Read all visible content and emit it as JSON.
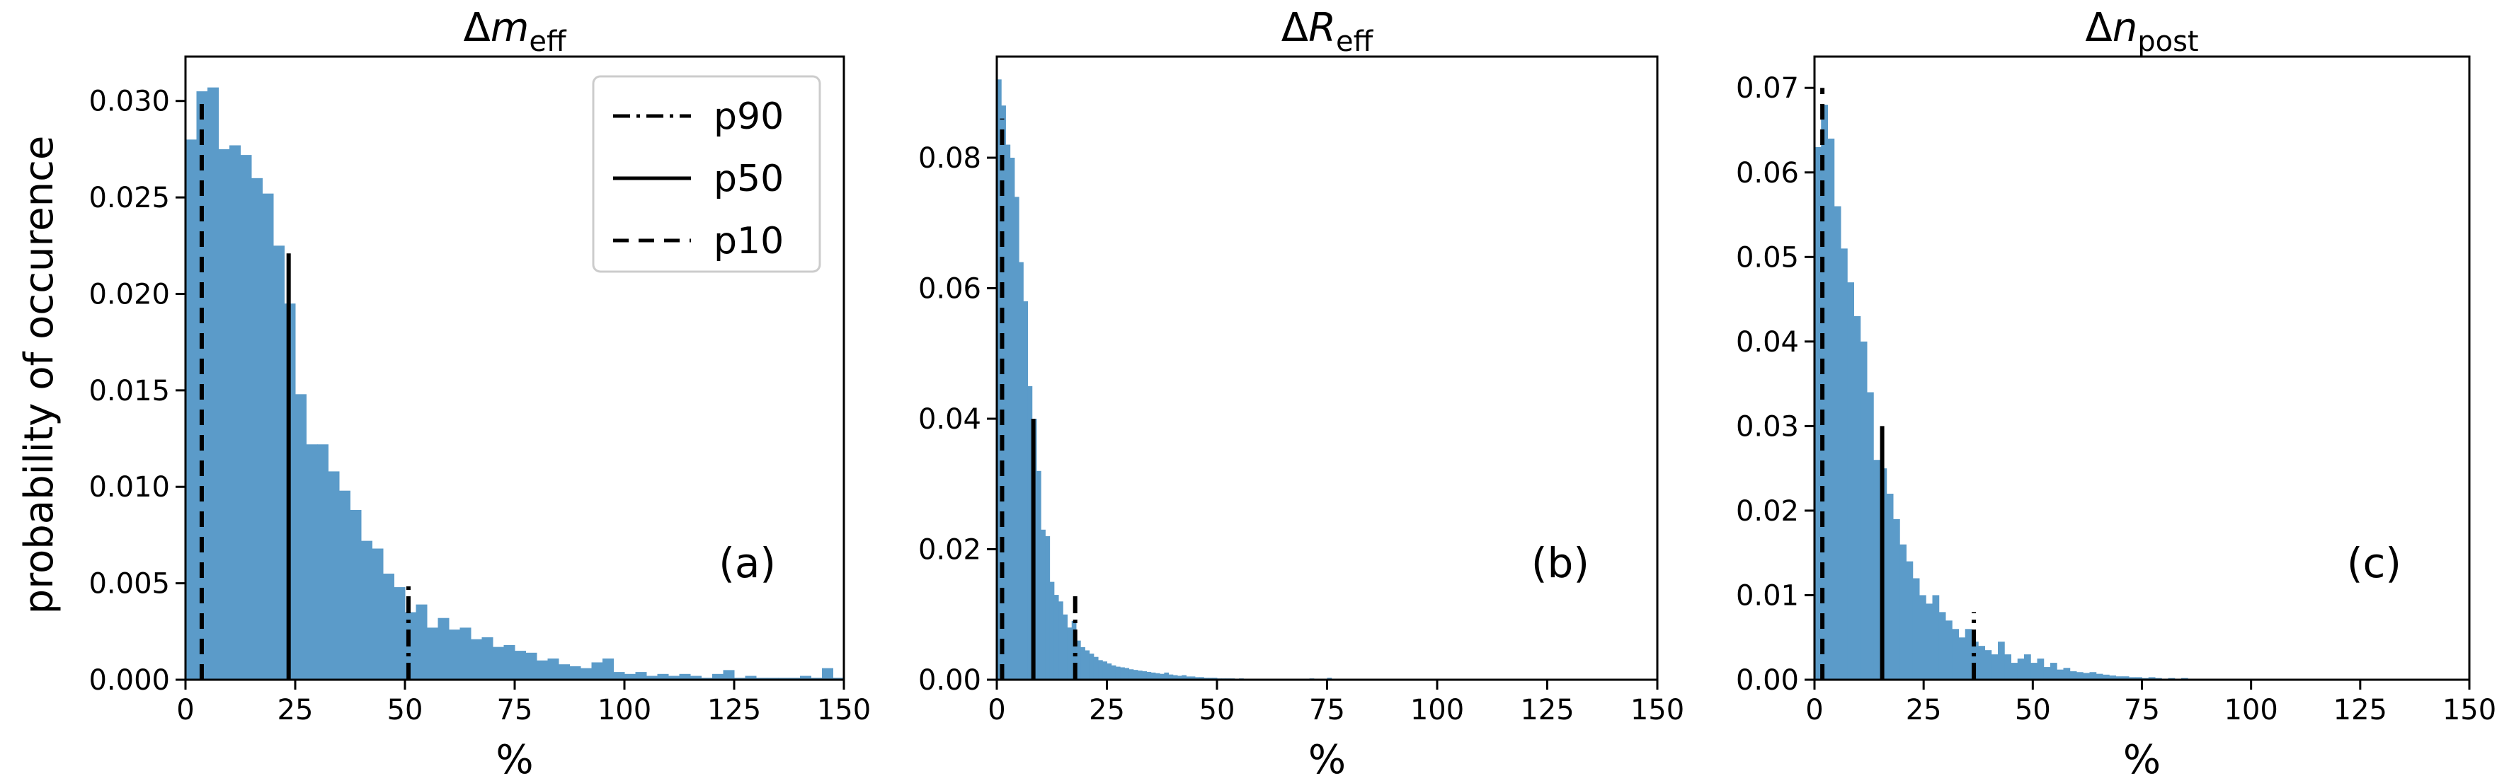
{
  "figure": {
    "ylabel": "probability of occurence",
    "legend": {
      "placement": "top-right of panel (a)",
      "entries": [
        {
          "label": "p90",
          "style": "dashdot"
        },
        {
          "label": "p50",
          "style": "solid"
        },
        {
          "label": "p10",
          "style": "dashed"
        }
      ]
    },
    "colors": {
      "bars": "#5b9bc9",
      "lines": "#000000",
      "axes": "#000000"
    }
  },
  "chart_data": [
    {
      "type": "bar",
      "panel": "a",
      "title_main": "Δm",
      "title_sub": "eff",
      "tag": "(a)",
      "xlabel": "%",
      "xlim": [
        0,
        150
      ],
      "ylim": [
        0,
        0.0323
      ],
      "xticks": [
        0,
        25,
        50,
        75,
        100,
        125,
        150
      ],
      "yticks": [
        0.0,
        0.005,
        0.01,
        0.015,
        0.02,
        0.025,
        0.03
      ],
      "ytick_labels": [
        "0.000",
        "0.005",
        "0.010",
        "0.015",
        "0.020",
        "0.025",
        "0.030"
      ],
      "bin_start": 0,
      "bin_width": 2.5,
      "values": [
        0.028,
        0.0305,
        0.0307,
        0.0275,
        0.0277,
        0.0272,
        0.026,
        0.0252,
        0.0225,
        0.0195,
        0.0148,
        0.0122,
        0.0122,
        0.0108,
        0.0098,
        0.0088,
        0.0072,
        0.0068,
        0.0055,
        0.0048,
        0.0035,
        0.0039,
        0.0027,
        0.0032,
        0.0026,
        0.0027,
        0.0021,
        0.0022,
        0.0017,
        0.0018,
        0.0015,
        0.0014,
        0.001,
        0.0011,
        0.0008,
        0.0007,
        0.0006,
        0.0009,
        0.0011,
        0.0004,
        0.0003,
        0.0004,
        0.0002,
        0.0003,
        0.0002,
        0.0003,
        0.0002,
        0.0001,
        0.0003,
        0.0005,
        0.0001,
        0.0002,
        0.0001,
        0.0001,
        0.0001,
        0.0001,
        0.0002,
        0.0001,
        0.0006,
        0.0001
      ],
      "percentiles": [
        {
          "name": "p10",
          "x": 3.7,
          "height": 0.03,
          "style": "dashed"
        },
        {
          "name": "p50",
          "x": 23.5,
          "height": 0.0221,
          "style": "solid"
        },
        {
          "name": "p90",
          "x": 50.8,
          "height": 0.005,
          "style": "dashdot"
        }
      ]
    },
    {
      "type": "bar",
      "panel": "b",
      "title_main": "ΔR",
      "title_sub": "eff",
      "tag": "(b)",
      "xlabel": "%",
      "xlim": [
        0,
        150
      ],
      "ylim": [
        0,
        0.0955
      ],
      "xticks": [
        0,
        25,
        50,
        75,
        100,
        125,
        150
      ],
      "yticks": [
        0.0,
        0.02,
        0.04,
        0.06,
        0.08
      ],
      "ytick_labels": [
        "0.00",
        "0.02",
        "0.04",
        "0.06",
        "0.08"
      ],
      "bin_start": 0,
      "bin_width": 1.0,
      "values": [
        0.092,
        0.088,
        0.082,
        0.08,
        0.074,
        0.064,
        0.058,
        0.045,
        0.04,
        0.032,
        0.023,
        0.022,
        0.015,
        0.013,
        0.012,
        0.01,
        0.008,
        0.009,
        0.006,
        0.005,
        0.0045,
        0.004,
        0.0035,
        0.003,
        0.0028,
        0.0025,
        0.0022,
        0.002,
        0.0019,
        0.0018,
        0.0016,
        0.0015,
        0.0014,
        0.0013,
        0.0012,
        0.0011,
        0.001,
        0.0009,
        0.0011,
        0.0008,
        0.0007,
        0.0006,
        0.0007,
        0.0005,
        0.0005,
        0.0004,
        0.0004,
        0.0003,
        0.0003,
        0.0003,
        0.0002,
        0.0002,
        0.0002,
        0.0002,
        0.0001,
        0.0002,
        0.0001,
        0.0001,
        0.0001,
        0.0001,
        0.0001,
        0.0001,
        0.0001,
        0.0001,
        0.0001,
        0.0001,
        0.0001,
        0.0001,
        0.0001,
        0.0001,
        0.0001,
        0.0002,
        0.0001,
        0.0001,
        0.0001,
        0.0003,
        0.0001,
        0.0001,
        0.0001,
        0.0001,
        0.0001
      ],
      "percentiles": [
        {
          "name": "p10",
          "x": 1.2,
          "height": 0.086,
          "style": "dashed"
        },
        {
          "name": "p50",
          "x": 8.3,
          "height": 0.04,
          "style": "solid"
        },
        {
          "name": "p90",
          "x": 17.8,
          "height": 0.013,
          "style": "dashdot"
        }
      ]
    },
    {
      "type": "bar",
      "panel": "c",
      "title_main": "Δn",
      "title_sub": "post",
      "tag": "(c)",
      "xlabel": "%",
      "xlim": [
        0,
        150
      ],
      "ylim": [
        0,
        0.0737
      ],
      "xticks": [
        0,
        25,
        50,
        75,
        100,
        125,
        150
      ],
      "yticks": [
        0.0,
        0.01,
        0.02,
        0.03,
        0.04,
        0.05,
        0.06,
        0.07
      ],
      "ytick_labels": [
        "0.00",
        "0.01",
        "0.02",
        "0.03",
        "0.04",
        "0.05",
        "0.06",
        "0.07"
      ],
      "bin_start": 0,
      "bin_width": 1.5,
      "values": [
        0.063,
        0.068,
        0.064,
        0.056,
        0.051,
        0.047,
        0.043,
        0.04,
        0.034,
        0.026,
        0.025,
        0.022,
        0.019,
        0.016,
        0.014,
        0.012,
        0.01,
        0.009,
        0.01,
        0.008,
        0.007,
        0.006,
        0.005,
        0.006,
        0.0045,
        0.004,
        0.0035,
        0.003,
        0.0045,
        0.003,
        0.002,
        0.0025,
        0.003,
        0.002,
        0.0025,
        0.0015,
        0.002,
        0.0012,
        0.0014,
        0.001,
        0.0009,
        0.0008,
        0.0009,
        0.0007,
        0.0006,
        0.0005,
        0.0004,
        0.0004,
        0.0003,
        0.0003,
        0.0002,
        0.0003,
        0.0002,
        0.0001,
        0.0002,
        0.0001,
        0.0002,
        0.0001,
        0.0001,
        0.0001,
        0.0001,
        0.0001
      ],
      "percentiles": [
        {
          "name": "p10",
          "x": 1.8,
          "height": 0.07,
          "style": "dashed"
        },
        {
          "name": "p50",
          "x": 15.5,
          "height": 0.03,
          "style": "solid"
        },
        {
          "name": "p90",
          "x": 36.5,
          "height": 0.008,
          "style": "dashdot"
        }
      ]
    }
  ]
}
